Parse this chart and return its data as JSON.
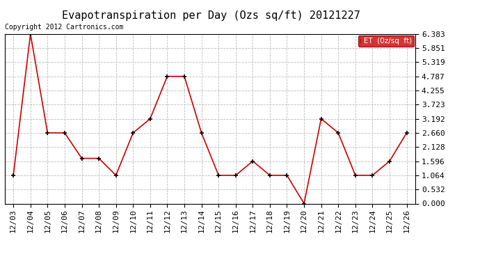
{
  "title": "Evapotranspiration per Day (Ozs sq/ft) 20121227",
  "copyright": "Copyright 2012 Cartronics.com",
  "legend_label": "ET  (0z/sq  ft)",
  "x_labels": [
    "12/03",
    "12/04",
    "12/05",
    "12/06",
    "12/07",
    "12/08",
    "12/09",
    "12/10",
    "12/11",
    "12/12",
    "12/13",
    "12/14",
    "12/15",
    "12/16",
    "12/17",
    "12/18",
    "12/19",
    "12/20",
    "12/21",
    "12/22",
    "12/23",
    "12/24",
    "12/25",
    "12/26"
  ],
  "y_values": [
    1.064,
    6.383,
    2.66,
    2.66,
    1.702,
    1.702,
    1.064,
    2.66,
    3.192,
    4.787,
    4.787,
    2.66,
    1.064,
    1.064,
    1.596,
    1.064,
    1.064,
    0.0,
    3.192,
    2.66,
    1.064,
    1.064,
    1.596,
    2.66
  ],
  "y_ticks": [
    0.0,
    0.532,
    1.064,
    1.596,
    2.128,
    2.66,
    3.192,
    3.723,
    4.255,
    4.787,
    5.319,
    5.851,
    6.383
  ],
  "line_color": "#cc0000",
  "marker_color": "#000000",
  "background_color": "#ffffff",
  "grid_color": "#bbbbbb",
  "legend_bg": "#cc0000",
  "legend_text_color": "#ffffff",
  "title_fontsize": 11,
  "copyright_fontsize": 7,
  "tick_fontsize": 8,
  "y_min": 0.0,
  "y_max": 6.383
}
